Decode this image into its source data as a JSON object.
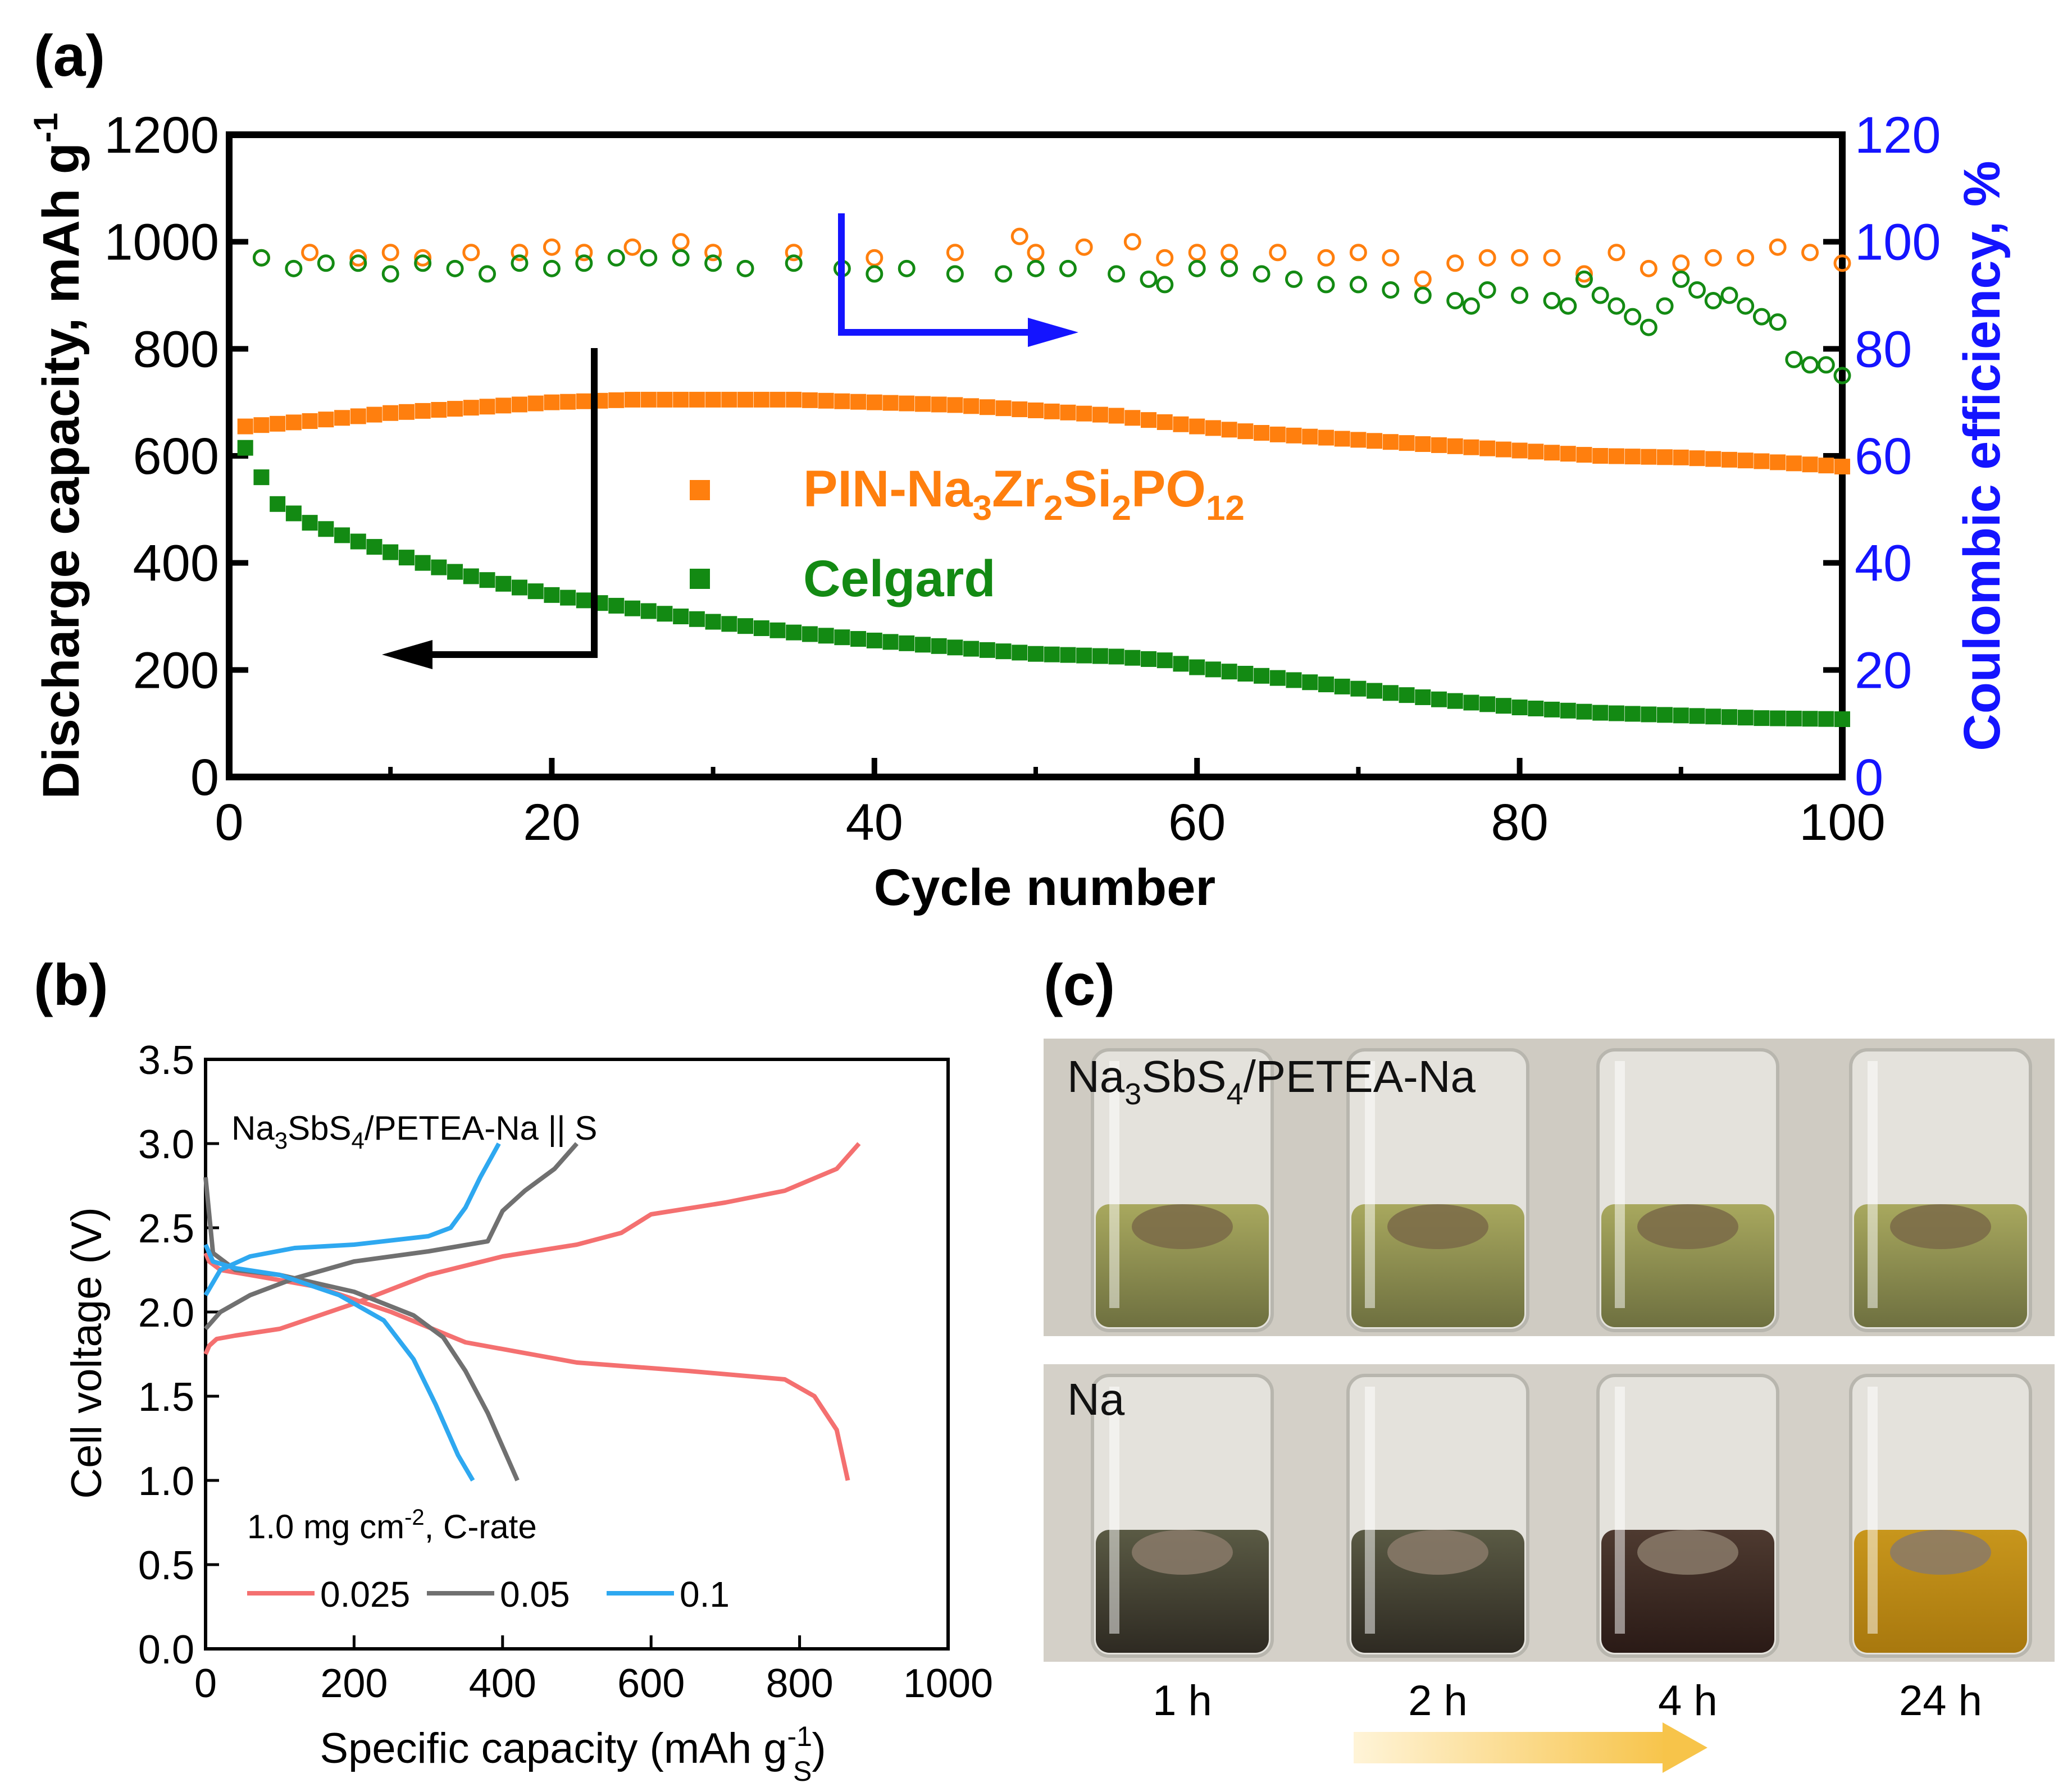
{
  "panel_a": {
    "label": "(a)",
    "legend": {
      "pin_prefix": "PIN-Na",
      "pin_sub1": "3",
      "pin_mid1": "Zr",
      "pin_sub2": "2",
      "pin_mid2": "Si",
      "pin_sub3": "2",
      "pin_mid3": "PO",
      "pin_sub4": "12",
      "celgard": "Celgard"
    }
  },
  "panel_b": {
    "label": "(b)",
    "annotation_main": "Na",
    "annotation_sub1": "3",
    "annotation_mid": "SbS",
    "annotation_sub2": "4",
    "annotation_tail": "/PETEA-Na || S",
    "loading_text": "1.0 mg cm",
    "loading_sup": "-2",
    "loading_tail": ", C-rate",
    "xlabel_main": "Specific capacity (mAh g",
    "xlabel_sup": "-1",
    "xlabel_sub": "S",
    "xlabel_tail": ")"
  },
  "panel_c": {
    "label": "(c)",
    "row1_prefix": "Na",
    "row1_sub1": "3",
    "row1_mid": "SbS",
    "row1_sub2": "4",
    "row1_tail": "/PETEA-Na",
    "row2_label": "Na",
    "times": [
      "1 h",
      "2 h",
      "4 h",
      "24 h"
    ]
  },
  "colors": {
    "orange": "#FF7F0E",
    "green": "#138A13",
    "blue": "#1414FF",
    "red025": "#F47070",
    "gray05": "#707070",
    "blue01": "#2EA8F0"
  },
  "chart_data": [
    {
      "type": "scatter",
      "title": "",
      "xlabel": "Cycle number",
      "ylabel": "Discharge capacity, mAh g-1",
      "y2label": "Coulombic efficiency, %",
      "xlim": [
        0,
        100
      ],
      "ylim": [
        0,
        1200
      ],
      "y2lim": [
        0,
        120
      ],
      "xticks": [
        0,
        20,
        40,
        60,
        80,
        100
      ],
      "yticks": [
        0,
        200,
        400,
        600,
        800,
        1000,
        1200
      ],
      "y2ticks": [
        0,
        20,
        40,
        60,
        80,
        100,
        120
      ],
      "series": [
        {
          "name": "PIN-Na3Zr2Si2PO12 capacity",
          "axis": "left",
          "marker": "square",
          "color": "#FF7F0E",
          "x": [
            1,
            5,
            10,
            15,
            20,
            25,
            30,
            35,
            40,
            45,
            50,
            55,
            60,
            65,
            70,
            75,
            80,
            85,
            90,
            95,
            100
          ],
          "y": [
            655,
            665,
            680,
            690,
            700,
            705,
            705,
            705,
            700,
            695,
            685,
            675,
            655,
            640,
            630,
            620,
            610,
            600,
            597,
            590,
            580
          ]
        },
        {
          "name": "Celgard capacity",
          "axis": "left",
          "marker": "square",
          "color": "#138A13",
          "x": [
            1,
            2,
            3,
            5,
            8,
            10,
            12,
            15,
            20,
            25,
            30,
            35,
            40,
            45,
            50,
            55,
            58,
            60,
            65,
            70,
            75,
            80,
            85,
            90,
            95,
            100
          ],
          "y": [
            615,
            560,
            510,
            475,
            440,
            420,
            400,
            375,
            340,
            315,
            290,
            270,
            255,
            242,
            230,
            225,
            218,
            205,
            185,
            165,
            145,
            130,
            120,
            115,
            110,
            108
          ]
        },
        {
          "name": "PIN-Na3Zr2Si2PO12 CE",
          "axis": "right",
          "marker": "circle-open",
          "color": "#FF7F0E",
          "x": [
            2,
            5,
            8,
            10,
            12,
            15,
            18,
            20,
            22,
            25,
            28,
            30,
            35,
            40,
            45,
            49,
            50,
            53,
            56,
            58,
            60,
            62,
            65,
            68,
            70,
            72,
            74,
            76,
            78,
            80,
            82,
            84,
            86,
            88,
            90,
            92,
            94,
            96,
            98,
            100
          ],
          "y": [
            97,
            98,
            97,
            98,
            97,
            98,
            98,
            99,
            98,
            99,
            100,
            98,
            98,
            97,
            98,
            101,
            98,
            99,
            100,
            97,
            98,
            98,
            98,
            97,
            98,
            97,
            93,
            96,
            97,
            97,
            97,
            94,
            98,
            95,
            96,
            97,
            97,
            99,
            98,
            96
          ]
        },
        {
          "name": "Celgard CE",
          "axis": "right",
          "marker": "circle-open",
          "color": "#138A13",
          "x": [
            2,
            4,
            6,
            8,
            10,
            12,
            14,
            16,
            18,
            20,
            22,
            24,
            26,
            28,
            30,
            32,
            35,
            38,
            40,
            42,
            45,
            48,
            50,
            52,
            55,
            57,
            58,
            60,
            62,
            64,
            66,
            68,
            70,
            72,
            74,
            76,
            77,
            78,
            80,
            82,
            83,
            84,
            85,
            86,
            87,
            88,
            89,
            90,
            91,
            92,
            93,
            94,
            95,
            96,
            97,
            98,
            99,
            100
          ],
          "y": [
            97,
            95,
            96,
            96,
            94,
            96,
            95,
            94,
            96,
            95,
            96,
            97,
            97,
            97,
            96,
            95,
            96,
            95,
            94,
            95,
            94,
            94,
            95,
            95,
            94,
            93,
            92,
            95,
            95,
            94,
            93,
            92,
            92,
            91,
            90,
            89,
            88,
            91,
            90,
            89,
            88,
            93,
            90,
            88,
            86,
            84,
            88,
            93,
            91,
            89,
            90,
            88,
            86,
            85,
            78,
            77,
            77,
            75
          ]
        }
      ]
    },
    {
      "type": "line",
      "title": "",
      "xlabel": "Specific capacity (mAh gS-1)",
      "ylabel": "Cell voltage (V)",
      "xlim": [
        0,
        1000
      ],
      "ylim": [
        0,
        3.5
      ],
      "xticks": [
        0,
        200,
        400,
        600,
        800,
        1000
      ],
      "yticks": [
        0.0,
        0.5,
        1.0,
        1.5,
        2.0,
        2.5,
        3.0,
        3.5
      ],
      "legend": [
        "0.025",
        "0.05",
        "0.1"
      ],
      "series": [
        {
          "name": "0.025",
          "segment": "charge",
          "color": "#F47070",
          "x": [
            0,
            5,
            15,
            40,
            100,
            200,
            300,
            400,
            500,
            560,
            600,
            700,
            780,
            850,
            880
          ],
          "y": [
            1.75,
            1.8,
            1.84,
            1.86,
            1.9,
            2.05,
            2.22,
            2.33,
            2.4,
            2.47,
            2.58,
            2.65,
            2.72,
            2.85,
            3.0
          ]
        },
        {
          "name": "0.025",
          "segment": "discharge",
          "color": "#F47070",
          "x": [
            0,
            5,
            20,
            60,
            150,
            250,
            350,
            500,
            650,
            780,
            820,
            850,
            860,
            865
          ],
          "y": [
            2.35,
            2.3,
            2.25,
            2.22,
            2.15,
            2.0,
            1.82,
            1.7,
            1.65,
            1.6,
            1.5,
            1.3,
            1.1,
            1.0
          ]
        },
        {
          "name": "0.05",
          "segment": "charge",
          "color": "#707070",
          "x": [
            0,
            20,
            60,
            120,
            200,
            300,
            380,
            400,
            430,
            470,
            500
          ],
          "y": [
            1.9,
            2.0,
            2.1,
            2.2,
            2.3,
            2.36,
            2.42,
            2.6,
            2.72,
            2.85,
            3.0
          ]
        },
        {
          "name": "0.05",
          "segment": "discharge",
          "color": "#707070",
          "x": [
            0,
            10,
            40,
            100,
            200,
            280,
            320,
            350,
            380,
            400,
            420
          ],
          "y": [
            2.8,
            2.35,
            2.25,
            2.22,
            2.12,
            1.98,
            1.85,
            1.65,
            1.4,
            1.2,
            1.0
          ]
        },
        {
          "name": "0.1",
          "segment": "charge",
          "color": "#2EA8F0",
          "x": [
            0,
            20,
            60,
            120,
            200,
            300,
            330,
            350,
            370,
            385,
            395
          ],
          "y": [
            2.1,
            2.25,
            2.33,
            2.38,
            2.4,
            2.45,
            2.5,
            2.62,
            2.8,
            2.92,
            3.0
          ]
        },
        {
          "name": "0.1",
          "segment": "discharge",
          "color": "#2EA8F0",
          "x": [
            0,
            10,
            40,
            100,
            180,
            240,
            280,
            310,
            340,
            360
          ],
          "y": [
            2.4,
            2.3,
            2.26,
            2.22,
            2.1,
            1.95,
            1.72,
            1.45,
            1.15,
            1.0
          ]
        }
      ]
    }
  ]
}
